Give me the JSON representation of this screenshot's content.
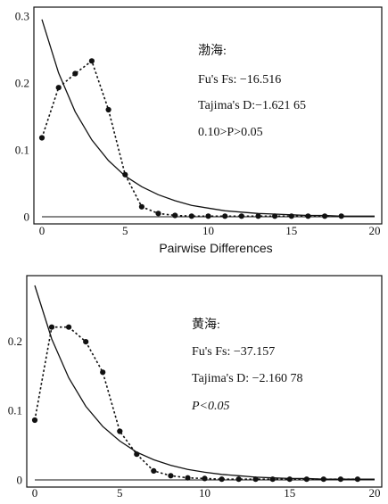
{
  "chart_data": [
    {
      "type": "line",
      "xlabel": "Pairwise Differences",
      "xlim": [
        0,
        20
      ],
      "ylim": [
        0,
        0.3
      ],
      "xticks": [
        "0",
        "5",
        "10",
        "15",
        "20"
      ],
      "yticks": [
        {
          "value": 0,
          "label": "0"
        },
        {
          "value": 0.1,
          "label": "0.1"
        },
        {
          "value": 0.2,
          "label": "0.2"
        },
        {
          "value": 0.3,
          "label": "0.3"
        }
      ],
      "annotations": [
        "渤海:",
        "Fu's Fs: −16.516",
        "Tajima's D:−1.621 65",
        "0.10>P>0.05"
      ],
      "series": [
        {
          "style": "solid",
          "x": [
            0,
            1,
            2,
            3,
            4,
            5,
            6,
            7,
            8,
            9,
            10,
            11,
            12,
            13,
            14,
            15,
            16,
            17,
            18,
            19,
            20
          ],
          "values": [
            0.295,
            0.215,
            0.157,
            0.115,
            0.084,
            0.061,
            0.045,
            0.033,
            0.024,
            0.017,
            0.013,
            0.009,
            0.007,
            0.005,
            0.004,
            0.003,
            0.002,
            0.002,
            0.001,
            0.001,
            0.001
          ]
        },
        {
          "style": "dotted-markers",
          "x": [
            0,
            1,
            2,
            3,
            4,
            5,
            6,
            7,
            8,
            9,
            10,
            11,
            12,
            13,
            14,
            15,
            16,
            17,
            18
          ],
          "values": [
            0.118,
            0.193,
            0.214,
            0.233,
            0.16,
            0.063,
            0.015,
            0.005,
            0.002,
            0.001,
            0.001,
            0.001,
            0.001,
            0.001,
            0.001,
            0.001,
            0.001,
            0.001,
            0.001
          ]
        }
      ]
    },
    {
      "type": "line",
      "xlabel": "",
      "xlim": [
        0,
        20
      ],
      "ylim": [
        0,
        0.28
      ],
      "xticks": [
        "0",
        "5",
        "10",
        "15",
        "20"
      ],
      "yticks": [
        {
          "value": 0,
          "label": "0"
        },
        {
          "value": 0.1,
          "label": "0.1"
        },
        {
          "value": 0.2,
          "label": "0.2"
        }
      ],
      "annotations": [
        "黄海:",
        "Fu's Fs: −37.157",
        "Tajima's D: −2.160 78",
        "P<0.05"
      ],
      "series": [
        {
          "style": "solid",
          "x": [
            0,
            1,
            2,
            3,
            4,
            5,
            6,
            7,
            8,
            9,
            10,
            11,
            12,
            13,
            14,
            15,
            16,
            17,
            18,
            19,
            20
          ],
          "values": [
            0.28,
            0.203,
            0.147,
            0.106,
            0.077,
            0.056,
            0.04,
            0.029,
            0.021,
            0.015,
            0.011,
            0.008,
            0.006,
            0.004,
            0.003,
            0.002,
            0.002,
            0.001,
            0.001,
            0.001,
            0.001
          ]
        },
        {
          "style": "dotted-markers",
          "x": [
            0,
            1,
            2,
            3,
            4,
            5,
            6,
            7,
            8,
            9,
            10,
            11,
            12,
            13,
            14,
            15,
            16,
            17,
            18,
            19
          ],
          "values": [
            0.086,
            0.22,
            0.22,
            0.199,
            0.155,
            0.07,
            0.037,
            0.013,
            0.006,
            0.003,
            0.002,
            0.001,
            0.001,
            0.001,
            0.001,
            0.001,
            0.001,
            0.001,
            0.001,
            0.001
          ]
        }
      ]
    }
  ]
}
